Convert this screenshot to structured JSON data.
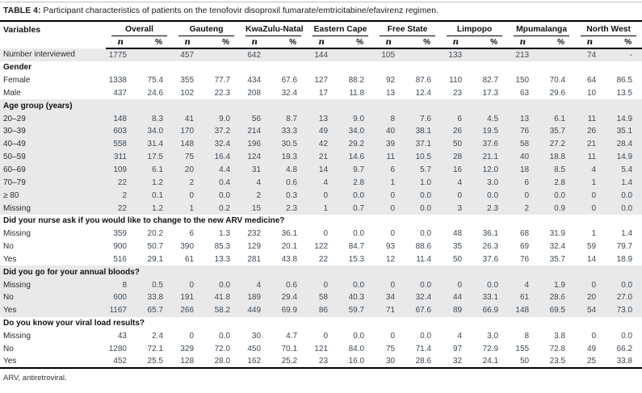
{
  "title": {
    "label": "TABLE 4:",
    "text": " Participant characteristics of patients on the tenofovir disoproxil fumarate/emtricitabine/efavirenz regimen."
  },
  "footnote": "ARV, antiretroviral.",
  "colors": {
    "shade": "#e9e9e9",
    "num_text": "#3c4a57",
    "label_text": "#2b2b2b",
    "rule": "#000000",
    "topline": "#bdbdbd"
  },
  "table": {
    "header": {
      "variables": "Variables",
      "groups": [
        "Overall",
        "Gauteng",
        "KwaZulu-Natal",
        "Eastern Cape",
        "Free State",
        "Limpopo",
        "Mpumalanga",
        "North West"
      ],
      "sub_n": "n",
      "sub_pct": "%"
    },
    "sections": [
      {
        "label": null,
        "shaded": true,
        "rows": [
          {
            "label": "Number interviewed",
            "values": [
              "1775",
              "",
              "457",
              "",
              "642",
              "",
              "144",
              "",
              "105",
              "",
              "133",
              "",
              "213",
              "",
              "74",
              "-"
            ]
          }
        ]
      },
      {
        "label": "Gender",
        "shaded": false,
        "rows": [
          {
            "label": "Female",
            "values": [
              "1338",
              "75.4",
              "355",
              "77.7",
              "434",
              "67.6",
              "127",
              "88.2",
              "92",
              "87.6",
              "110",
              "82.7",
              "150",
              "70.4",
              "64",
              "86.5"
            ]
          },
          {
            "label": "Male",
            "values": [
              "437",
              "24.6",
              "102",
              "22.3",
              "208",
              "32.4",
              "17",
              "11.8",
              "13",
              "12.4",
              "23",
              "17.3",
              "63",
              "29.6",
              "10",
              "13.5"
            ]
          }
        ]
      },
      {
        "label": "Age group (years)",
        "shaded": true,
        "rows": [
          {
            "label": "20–29",
            "values": [
              "148",
              "8.3",
              "41",
              "9.0",
              "56",
              "8.7",
              "13",
              "9.0",
              "8",
              "7.6",
              "6",
              "4.5",
              "13",
              "6.1",
              "11",
              "14.9"
            ]
          },
          {
            "label": "30–39",
            "values": [
              "603",
              "34.0",
              "170",
              "37.2",
              "214",
              "33.3",
              "49",
              "34.0",
              "40",
              "38.1",
              "26",
              "19.5",
              "76",
              "35.7",
              "26",
              "35.1"
            ]
          },
          {
            "label": "40–49",
            "values": [
              "558",
              "31.4",
              "148",
              "32.4",
              "196",
              "30.5",
              "42",
              "29.2",
              "39",
              "37.1",
              "50",
              "37.6",
              "58",
              "27.2",
              "21",
              "28.4"
            ]
          },
          {
            "label": "50–59",
            "values": [
              "311",
              "17.5",
              "75",
              "16.4",
              "124",
              "19.3",
              "21",
              "14.6",
              "11",
              "10.5",
              "28",
              "21.1",
              "40",
              "18.8",
              "11",
              "14.9"
            ]
          },
          {
            "label": "60–69",
            "values": [
              "109",
              "6.1",
              "20",
              "4.4",
              "31",
              "4.8",
              "14",
              "9.7",
              "6",
              "5.7",
              "16",
              "12.0",
              "18",
              "8.5",
              "4",
              "5.4"
            ]
          },
          {
            "label": "70–79",
            "values": [
              "22",
              "1.2",
              "2",
              "0.4",
              "4",
              "0.6",
              "4",
              "2.8",
              "1",
              "1.0",
              "4",
              "3.0",
              "6",
              "2.8",
              "1",
              "1.4"
            ]
          },
          {
            "label": "≥ 80",
            "values": [
              "2",
              "0.1",
              "0",
              "0.0",
              "2",
              "0.3",
              "0",
              "0.0",
              "0",
              "0.0",
              "0",
              "0.0",
              "0",
              "0.0",
              "0",
              "0.0"
            ]
          },
          {
            "label": "Missing",
            "values": [
              "22",
              "1.2",
              "1",
              "0.2",
              "15",
              "2.3",
              "1",
              "0.7",
              "0",
              "0.0",
              "3",
              "2.3",
              "2",
              "0.9",
              "0",
              "0.0"
            ]
          }
        ]
      },
      {
        "label": "Did your nurse ask if you would like to change to the new ARV medicine?",
        "shaded": false,
        "rows": [
          {
            "label": "Missing",
            "values": [
              "359",
              "20.2",
              "6",
              "1.3",
              "232",
              "36.1",
              "0",
              "0.0",
              "0",
              "0.0",
              "48",
              "36.1",
              "68",
              "31.9",
              "1",
              "1.4"
            ]
          },
          {
            "label": "No",
            "values": [
              "900",
              "50.7",
              "390",
              "85.3",
              "129",
              "20.1",
              "122",
              "84.7",
              "93",
              "88.6",
              "35",
              "26.3",
              "69",
              "32.4",
              "59",
              "79.7"
            ]
          },
          {
            "label": "Yes",
            "values": [
              "516",
              "29.1",
              "61",
              "13.3",
              "281",
              "43.8",
              "22",
              "15.3",
              "12",
              "11.4",
              "50",
              "37.6",
              "76",
              "35.7",
              "14",
              "18.9"
            ]
          }
        ]
      },
      {
        "label": "Did you go for your annual bloods?",
        "shaded": true,
        "rows": [
          {
            "label": "Missing",
            "values": [
              "8",
              "0.5",
              "0",
              "0.0",
              "4",
              "0.6",
              "0",
              "0.0",
              "0",
              "0.0",
              "0",
              "0.0",
              "4",
              "1.9",
              "0",
              "0.0"
            ]
          },
          {
            "label": "No",
            "values": [
              "600",
              "33.8",
              "191",
              "41.8",
              "189",
              "29.4",
              "58",
              "40.3",
              "34",
              "32.4",
              "44",
              "33.1",
              "61",
              "28.6",
              "20",
              "27.0"
            ]
          },
          {
            "label": "Yes",
            "values": [
              "1167",
              "65.7",
              "266",
              "58.2",
              "449",
              "69.9",
              "86",
              "59.7",
              "71",
              "67.6",
              "89",
              "66.9",
              "148",
              "69.5",
              "54",
              "73.0"
            ]
          }
        ]
      },
      {
        "label": "Do you know your viral load results?",
        "shaded": false,
        "rows": [
          {
            "label": "Missing",
            "values": [
              "43",
              "2.4",
              "0",
              "0.0",
              "30",
              "4.7",
              "0",
              "0.0",
              "0",
              "0.0",
              "4",
              "3.0",
              "8",
              "3.8",
              "0",
              "0.0"
            ]
          },
          {
            "label": "No",
            "values": [
              "1280",
              "72.1",
              "329",
              "72.0",
              "450",
              "70.1",
              "121",
              "84.0",
              "75",
              "71.4",
              "97",
              "72.9",
              "155",
              "72.8",
              "49",
              "66.2"
            ]
          },
          {
            "label": "Yes",
            "values": [
              "452",
              "25.5",
              "128",
              "28.0",
              "162",
              "25.2",
              "23",
              "16.0",
              "30",
              "28.6",
              "32",
              "24.1",
              "50",
              "23.5",
              "25",
              "33.8"
            ]
          }
        ]
      }
    ]
  }
}
